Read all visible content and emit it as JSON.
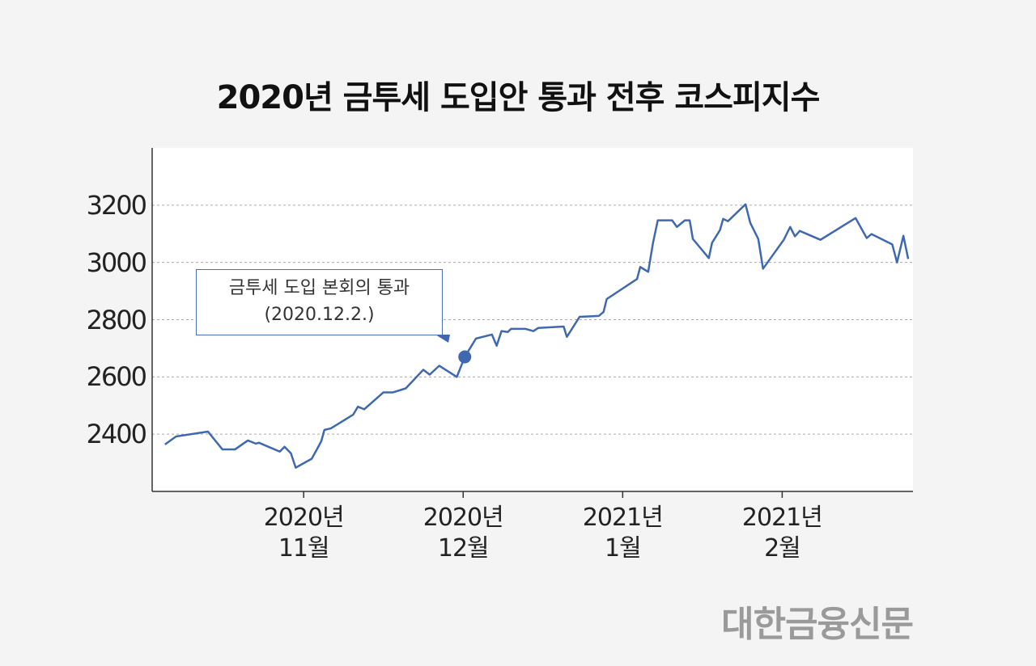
{
  "chart_data": {
    "type": "line",
    "title": "2020년 금투세 도입안 통과 전후 코스피지수",
    "annotation": [
      "금투세 도입 본회의 통과",
      "(2020.12.2.)"
    ],
    "source": "대한금융신문",
    "x": [
      10.13,
      10.2,
      10.4,
      10.49,
      10.57,
      10.65,
      10.7,
      10.72,
      10.85,
      10.88,
      10.92,
      10.95,
      11.05,
      11.08,
      11.11,
      11.13,
      11.17,
      11.31,
      11.34,
      11.38,
      11.5,
      11.56,
      11.64,
      11.75,
      11.79,
      11.85,
      11.96,
      12.01,
      12.08,
      12.18,
      12.21,
      12.24,
      12.28,
      12.3,
      12.39,
      12.44,
      12.47,
      12.63,
      12.65,
      12.73,
      12.85,
      12.88,
      12.9,
      13.09,
      13.11,
      13.16,
      13.19,
      13.22,
      13.31,
      13.34,
      13.39,
      13.42,
      13.44,
      13.54,
      13.56,
      13.61,
      13.63,
      13.66,
      13.77,
      13.8,
      13.85,
      13.88,
      14.01,
      14.05,
      14.08,
      14.11,
      14.24,
      14.46,
      14.53,
      14.56,
      14.69,
      14.72,
      14.76,
      14.79
    ],
    "series": [
      {
        "name": "코스피지수",
        "color": "#3f68b1",
        "values": [
          2364,
          2392,
          2409,
          2347,
          2347,
          2378,
          2367,
          2370,
          2339,
          2356,
          2333,
          2283,
          2314,
          2344,
          2375,
          2415,
          2420,
          2468,
          2496,
          2487,
          2546,
          2546,
          2560,
          2625,
          2608,
          2639,
          2600,
          2670,
          2734,
          2748,
          2709,
          2760,
          2757,
          2768,
          2768,
          2760,
          2771,
          2776,
          2740,
          2810,
          2813,
          2827,
          2872,
          2942,
          2984,
          2967,
          3068,
          3147,
          3147,
          3124,
          3147,
          3147,
          3082,
          3015,
          3068,
          3113,
          3152,
          3144,
          3203,
          3138,
          3082,
          2978,
          3079,
          3124,
          3091,
          3110,
          3079,
          3155,
          3085,
          3099,
          3063,
          3000,
          3093,
          3012
        ]
      }
    ],
    "xlim": [
      10.05,
      14.82
    ],
    "xticks": [
      {
        "value": 11,
        "label": "2020년\n11월"
      },
      {
        "value": 12,
        "label": "2020년\n12월"
      },
      {
        "value": 13,
        "label": "2021년\n1월"
      },
      {
        "value": 14,
        "label": "2021년\n2월"
      }
    ],
    "ylim": [
      2200,
      3400
    ],
    "yticks": [
      2400,
      2600,
      2800,
      3000,
      3200
    ],
    "grid": true
  }
}
